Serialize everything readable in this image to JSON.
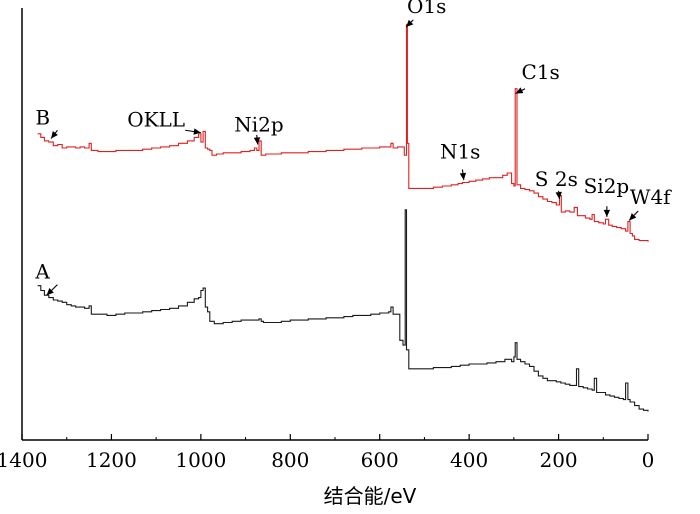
{
  "chart_data": {
    "type": "line",
    "title": "",
    "xlabel": "结合能/eV",
    "ylabel": "",
    "xlim": [
      1400,
      0
    ],
    "x_reversed": true,
    "x_ticks": [
      1400,
      1200,
      1000,
      800,
      600,
      400,
      200,
      0
    ],
    "x_tick_labels": [
      "1400",
      "1200",
      "1000",
      "800",
      "600",
      "400",
      "200",
      "0"
    ],
    "y_ticks_shown": false,
    "grid": false,
    "series": [
      {
        "name": "B",
        "color": "#e02020",
        "label_pos": [
          1370,
          2.3
        ],
        "arrow_target": [
          1335,
          1.7
        ],
        "points": [
          [
            1365,
            1.9
          ],
          [
            1358,
            1.75
          ],
          [
            1350,
            1.6
          ],
          [
            1340,
            1.55
          ],
          [
            1330,
            1.4
          ],
          [
            1320,
            1.45
          ],
          [
            1310,
            1.3
          ],
          [
            1300,
            1.35
          ],
          [
            1290,
            1.35
          ],
          [
            1280,
            1.3
          ],
          [
            1270,
            1.35
          ],
          [
            1260,
            1.3
          ],
          [
            1250,
            1.5
          ],
          [
            1245,
            1.2
          ],
          [
            1230,
            1.15
          ],
          [
            1210,
            1.15
          ],
          [
            1190,
            1.2
          ],
          [
            1170,
            1.2
          ],
          [
            1150,
            1.2
          ],
          [
            1130,
            1.25
          ],
          [
            1110,
            1.3
          ],
          [
            1090,
            1.35
          ],
          [
            1070,
            1.4
          ],
          [
            1050,
            1.5
          ],
          [
            1030,
            1.6
          ],
          [
            1015,
            1.75
          ],
          [
            1005,
            1.9
          ],
          [
            1000,
            1.55
          ],
          [
            995,
            2.0
          ],
          [
            990,
            1.3
          ],
          [
            985,
            1.25
          ],
          [
            980,
            1.2
          ],
          [
            975,
            1.0
          ],
          [
            965,
            1.05
          ],
          [
            950,
            1.1
          ],
          [
            930,
            1.1
          ],
          [
            910,
            1.15
          ],
          [
            890,
            1.2
          ],
          [
            880,
            1.3
          ],
          [
            875,
            1.2
          ],
          [
            870,
            1.6
          ],
          [
            865,
            1.0
          ],
          [
            855,
            1.05
          ],
          [
            840,
            1.05
          ],
          [
            820,
            1.1
          ],
          [
            800,
            1.1
          ],
          [
            780,
            1.1
          ],
          [
            760,
            1.15
          ],
          [
            740,
            1.15
          ],
          [
            720,
            1.2
          ],
          [
            700,
            1.2
          ],
          [
            680,
            1.25
          ],
          [
            660,
            1.25
          ],
          [
            640,
            1.3
          ],
          [
            620,
            1.3
          ],
          [
            600,
            1.35
          ],
          [
            580,
            1.35
          ],
          [
            575,
            1.5
          ],
          [
            570,
            1.3
          ],
          [
            560,
            1.35
          ],
          [
            550,
            1.35
          ],
          [
            545,
            1.0
          ],
          [
            540,
            6.5
          ],
          [
            538,
            1.5
          ],
          [
            535,
            -0.4
          ],
          [
            520,
            -0.4
          ],
          [
            500,
            -0.4
          ],
          [
            480,
            -0.35
          ],
          [
            460,
            -0.3
          ],
          [
            440,
            -0.25
          ],
          [
            425,
            -0.2
          ],
          [
            415,
            -0.15
          ],
          [
            400,
            -0.1
          ],
          [
            385,
            -0.05
          ],
          [
            370,
            0.0
          ],
          [
            355,
            0.05
          ],
          [
            340,
            0.05
          ],
          [
            325,
            0.15
          ],
          [
            315,
            0.25
          ],
          [
            305,
            -0.2
          ],
          [
            300,
            -0.3
          ],
          [
            297,
            3.8
          ],
          [
            293,
            -0.25
          ],
          [
            285,
            -0.4
          ],
          [
            275,
            -0.45
          ],
          [
            265,
            -0.5
          ],
          [
            255,
            -0.6
          ],
          [
            245,
            -0.75
          ],
          [
            235,
            -0.85
          ],
          [
            225,
            -0.95
          ],
          [
            215,
            -1.0
          ],
          [
            205,
            -1.1
          ],
          [
            198,
            -0.7
          ],
          [
            194,
            -1.4
          ],
          [
            185,
            -1.35
          ],
          [
            175,
            -1.4
          ],
          [
            165,
            -1.2
          ],
          [
            158,
            -1.55
          ],
          [
            150,
            -1.55
          ],
          [
            140,
            -1.65
          ],
          [
            130,
            -1.7
          ],
          [
            125,
            -1.5
          ],
          [
            120,
            -1.8
          ],
          [
            110,
            -1.85
          ],
          [
            100,
            -1.9
          ],
          [
            95,
            -1.7
          ],
          [
            88,
            -1.95
          ],
          [
            80,
            -2.0
          ],
          [
            70,
            -2.05
          ],
          [
            60,
            -2.1
          ],
          [
            50,
            -2.2
          ],
          [
            45,
            -1.8
          ],
          [
            40,
            -2.3
          ],
          [
            35,
            -2.4
          ],
          [
            30,
            -2.55
          ],
          [
            20,
            -2.6
          ],
          [
            10,
            -2.6
          ],
          [
            0,
            -2.65
          ]
        ]
      },
      {
        "name": "A",
        "color": "#1a1a1a",
        "label_pos": [
          1370,
          -4.2
        ],
        "arrow_target": [
          1345,
          -4.9
        ],
        "points": [
          [
            1365,
            -4.5
          ],
          [
            1358,
            -4.7
          ],
          [
            1350,
            -4.9
          ],
          [
            1340,
            -5.0
          ],
          [
            1330,
            -5.1
          ],
          [
            1320,
            -5.15
          ],
          [
            1310,
            -5.2
          ],
          [
            1300,
            -5.3
          ],
          [
            1290,
            -5.35
          ],
          [
            1280,
            -5.4
          ],
          [
            1270,
            -5.4
          ],
          [
            1260,
            -5.45
          ],
          [
            1250,
            -5.35
          ],
          [
            1245,
            -5.7
          ],
          [
            1230,
            -5.7
          ],
          [
            1210,
            -5.75
          ],
          [
            1190,
            -5.7
          ],
          [
            1170,
            -5.65
          ],
          [
            1150,
            -5.65
          ],
          [
            1130,
            -5.6
          ],
          [
            1110,
            -5.55
          ],
          [
            1090,
            -5.5
          ],
          [
            1070,
            -5.45
          ],
          [
            1050,
            -5.35
          ],
          [
            1030,
            -5.2
          ],
          [
            1015,
            -5.05
          ],
          [
            1005,
            -5.0
          ],
          [
            1000,
            -4.7
          ],
          [
            995,
            -4.6
          ],
          [
            990,
            -5.4
          ],
          [
            985,
            -5.6
          ],
          [
            980,
            -6.0
          ],
          [
            970,
            -6.1
          ],
          [
            950,
            -6.05
          ],
          [
            930,
            -6.0
          ],
          [
            910,
            -5.95
          ],
          [
            890,
            -5.95
          ],
          [
            870,
            -5.9
          ],
          [
            865,
            -6.0
          ],
          [
            860,
            -6.05
          ],
          [
            840,
            -6.05
          ],
          [
            820,
            -6.0
          ],
          [
            800,
            -5.95
          ],
          [
            780,
            -5.95
          ],
          [
            760,
            -5.9
          ],
          [
            740,
            -5.9
          ],
          [
            720,
            -5.85
          ],
          [
            700,
            -5.85
          ],
          [
            680,
            -5.8
          ],
          [
            660,
            -5.75
          ],
          [
            640,
            -5.75
          ],
          [
            620,
            -5.7
          ],
          [
            600,
            -5.65
          ],
          [
            580,
            -5.6
          ],
          [
            575,
            -5.4
          ],
          [
            570,
            -5.7
          ],
          [
            560,
            -5.7
          ],
          [
            555,
            -6.8
          ],
          [
            548,
            -7.0
          ],
          [
            543,
            -1.3
          ],
          [
            540,
            -7.2
          ],
          [
            535,
            -8.0
          ],
          [
            520,
            -8.0
          ],
          [
            500,
            -8.0
          ],
          [
            480,
            -7.95
          ],
          [
            460,
            -7.95
          ],
          [
            440,
            -7.9
          ],
          [
            420,
            -7.85
          ],
          [
            400,
            -7.8
          ],
          [
            380,
            -7.8
          ],
          [
            360,
            -7.75
          ],
          [
            340,
            -7.7
          ],
          [
            320,
            -7.6
          ],
          [
            305,
            -7.7
          ],
          [
            300,
            -7.5
          ],
          [
            297,
            -6.9
          ],
          [
            293,
            -7.6
          ],
          [
            285,
            -7.7
          ],
          [
            275,
            -7.8
          ],
          [
            265,
            -7.9
          ],
          [
            255,
            -8.1
          ],
          [
            245,
            -8.3
          ],
          [
            235,
            -8.4
          ],
          [
            225,
            -8.5
          ],
          [
            215,
            -8.5
          ],
          [
            205,
            -8.55
          ],
          [
            195,
            -8.6
          ],
          [
            185,
            -8.65
          ],
          [
            175,
            -8.7
          ],
          [
            165,
            -8.7
          ],
          [
            160,
            -8.0
          ],
          [
            155,
            -8.75
          ],
          [
            145,
            -8.8
          ],
          [
            135,
            -8.85
          ],
          [
            125,
            -8.9
          ],
          [
            120,
            -8.4
          ],
          [
            115,
            -9.0
          ],
          [
            105,
            -9.0
          ],
          [
            95,
            -9.1
          ],
          [
            85,
            -9.15
          ],
          [
            75,
            -9.2
          ],
          [
            65,
            -9.25
          ],
          [
            55,
            -9.3
          ],
          [
            50,
            -8.6
          ],
          [
            45,
            -9.3
          ],
          [
            40,
            -9.4
          ],
          [
            30,
            -9.55
          ],
          [
            20,
            -9.7
          ],
          [
            10,
            -9.75
          ],
          [
            0,
            -9.8
          ]
        ]
      }
    ],
    "annotations": [
      {
        "text": "O1s",
        "label_at": [
          495,
          7.0
        ],
        "arrow_from": [
          525,
          6.7
        ],
        "arrow_to": [
          541,
          6.4
        ]
      },
      {
        "text": "C1s",
        "label_at": [
          240,
          4.2
        ],
        "arrow_from": [
          275,
          3.8
        ],
        "arrow_to": [
          296,
          3.6
        ]
      },
      {
        "text": "OKLL",
        "label_at": [
          1100,
          2.2
        ],
        "arrow_from": [
          1035,
          2.05
        ],
        "arrow_to": [
          1000,
          1.95
        ]
      },
      {
        "text": "Ni2p",
        "label_at": [
          870,
          2.0
        ],
        "arrow_from": [
          875,
          1.85
        ],
        "arrow_to": [
          873,
          1.45
        ]
      },
      {
        "text": "N1s",
        "label_at": [
          420,
          0.85
        ],
        "arrow_from": [
          415,
          0.4
        ],
        "arrow_to": [
          412,
          -0.05
        ]
      },
      {
        "text": "S 2s",
        "label_at": [
          205,
          -0.3
        ],
        "arrow_from": [
          200,
          -0.5
        ],
        "arrow_to": [
          198,
          -0.85
        ]
      },
      {
        "text": "Si2p",
        "label_at": [
          93,
          -0.6
        ],
        "arrow_from": [
          92,
          -1.15
        ],
        "arrow_to": [
          92,
          -1.6
        ]
      },
      {
        "text": "W4f",
        "label_at": [
          -5,
          -1.05
        ],
        "arrow_from": [
          22,
          -1.35
        ],
        "arrow_to": [
          42,
          -1.75
        ]
      }
    ]
  }
}
